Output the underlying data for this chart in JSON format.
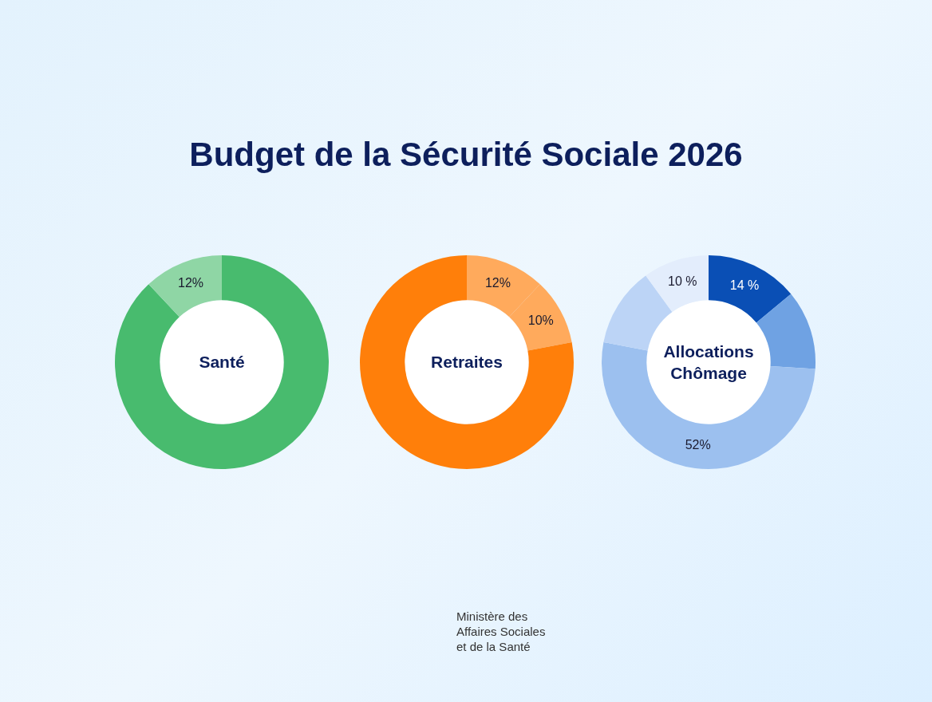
{
  "chart_data": [
    {
      "type": "donut",
      "title": "Budget de la Sécurité Sociale 2026",
      "annotations": [
        "Santé"
      ],
      "categories": [
        null,
        null
      ],
      "values": [
        88,
        12
      ],
      "colors": [
        "#48bb6e",
        "#8fd6a5"
      ],
      "value_labels": [
        null,
        "12%"
      ],
      "legend": false
    },
    {
      "type": "donut",
      "annotations": [
        "Retraites"
      ],
      "categories": [
        null,
        null,
        null
      ],
      "values": [
        12,
        10,
        78
      ],
      "colors": [
        "#ffaa5c",
        "#ffaa5c",
        "#ff7f0a"
      ],
      "value_labels": [
        "12%",
        "10%",
        null
      ],
      "legend": false
    },
    {
      "type": "donut",
      "annotations": [
        "Allocations Chômage",
        "Ministère des Affaires Sociales et de la Santé"
      ],
      "categories": [
        null,
        null,
        null,
        null,
        null
      ],
      "values": [
        14,
        12,
        52,
        12,
        10
      ],
      "colors": [
        "#0a4fb5",
        "#6fa2e3",
        "#9cc0ef",
        "#bcd4f6",
        "#e3edfc"
      ],
      "value_labels": [
        "14 %",
        null,
        "52%",
        null,
        "10 %"
      ],
      "legend": false
    }
  ]
}
